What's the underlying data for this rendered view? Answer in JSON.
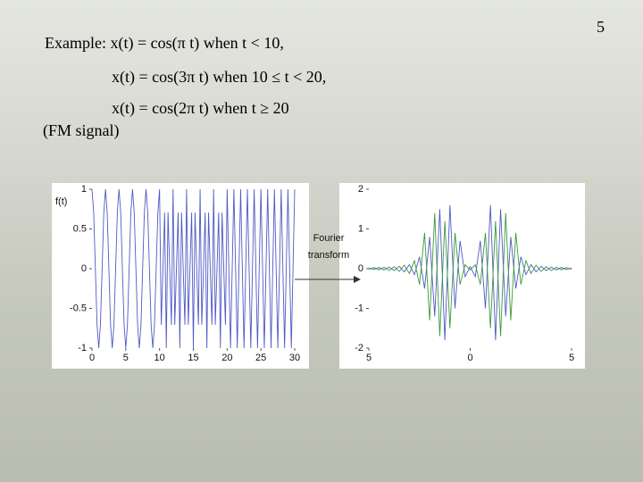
{
  "slide": {
    "page_number": "5",
    "lines": [
      "Example: x(t) = cos(π t) when t < 10,",
      "x(t) = cos(3π t) when 10 ≤ t < 20,",
      "x(t) = cos(2π t) when t ≥ 20",
      "(FM signal)"
    ]
  },
  "chart_data": [
    {
      "type": "line",
      "ylabel": "f(t)",
      "x": [
        0,
        0.25,
        0.5,
        0.75,
        1,
        1.25,
        1.5,
        1.75,
        2,
        2.25,
        2.5,
        2.75,
        3,
        3.25,
        3.5,
        3.75,
        4,
        4.25,
        4.5,
        4.75,
        5,
        5.25,
        5.5,
        5.75,
        6,
        6.25,
        6.5,
        6.75,
        7,
        7.25,
        7.5,
        7.75,
        8,
        8.25,
        8.5,
        8.75,
        9,
        9.25,
        9.5,
        9.75,
        10,
        10.25,
        10.5,
        10.75,
        11,
        11.25,
        11.5,
        11.75,
        12,
        12.25,
        12.5,
        12.75,
        13,
        13.25,
        13.5,
        13.75,
        14,
        14.25,
        14.5,
        14.75,
        15,
        15.25,
        15.5,
        15.75,
        16,
        16.25,
        16.5,
        16.75,
        17,
        17.25,
        17.5,
        17.75,
        18,
        18.25,
        18.5,
        18.75,
        19,
        19.25,
        19.5,
        19.75,
        20,
        20.25,
        20.5,
        20.75,
        21,
        21.25,
        21.5,
        21.75,
        22,
        22.25,
        22.5,
        22.75,
        23,
        23.25,
        23.5,
        23.75,
        24,
        24.25,
        24.5,
        24.75,
        25,
        25.25,
        25.5,
        25.75,
        26,
        26.25,
        26.5,
        26.75,
        27,
        27.25,
        27.5,
        27.75,
        28,
        28.25,
        28.5,
        28.75,
        29,
        29.25,
        29.5,
        29.75,
        30
      ],
      "series": [
        {
          "color": "#4f5bc4",
          "values": [
            1,
            0.707,
            0,
            -0.707,
            -1,
            -0.707,
            0,
            0.707,
            1,
            0.707,
            0,
            -0.707,
            -1,
            -0.707,
            0,
            0.707,
            1,
            0.707,
            0,
            -0.707,
            -1,
            -0.707,
            0,
            0.707,
            1,
            0.707,
            0,
            -0.707,
            -1,
            -0.707,
            0,
            0.707,
            1,
            0.707,
            0,
            -0.707,
            -1,
            -0.707,
            0,
            0.707,
            1,
            -0.707,
            0,
            0.707,
            -1,
            0.707,
            0,
            -0.707,
            1,
            -0.707,
            0,
            0.707,
            -1,
            0.707,
            0,
            -0.707,
            1,
            -0.707,
            0,
            0.707,
            -1,
            0.707,
            0,
            -0.707,
            1,
            -0.707,
            0,
            0.707,
            -1,
            0.707,
            0,
            -0.707,
            1,
            -0.707,
            0,
            0.707,
            -1,
            0.707,
            0,
            -0.707,
            1,
            0,
            -1,
            0,
            1,
            0,
            -1,
            0,
            1,
            0,
            -1,
            0,
            1,
            0,
            -1,
            0,
            1,
            0,
            -1,
            0,
            1,
            0,
            -1,
            0,
            1,
            0,
            -1,
            0,
            1,
            0,
            -1,
            0,
            1,
            0,
            -1,
            0,
            1,
            0,
            -1,
            0,
            1
          ]
        }
      ],
      "xlim": [
        0,
        30
      ],
      "xticks": [
        0,
        5,
        10,
        15,
        20,
        25,
        30
      ],
      "ylim": [
        -1,
        1
      ],
      "yticks": [
        -1,
        -0.5,
        0,
        0.5,
        1
      ]
    },
    {
      "type": "line",
      "annotation": [
        "Fourier",
        "transform"
      ],
      "x": [
        -5,
        -4.75,
        -4.5,
        -4.25,
        -4,
        -3.75,
        -3.5,
        -3.25,
        -3,
        -2.75,
        -2.5,
        -2.25,
        -2,
        -1.75,
        -1.5,
        -1.25,
        -1,
        -0.75,
        -0.5,
        -0.25,
        0,
        0.25,
        0.5,
        0.75,
        1,
        1.25,
        1.5,
        1.75,
        2,
        2.25,
        2.5,
        2.75,
        3,
        3.25,
        3.5,
        3.75,
        4,
        4.25,
        4.5,
        4.75,
        5
      ],
      "series": [
        {
          "color": "#4f5bc4",
          "values": [
            0.02,
            -0.02,
            0.03,
            -0.03,
            0.04,
            -0.05,
            0.06,
            -0.08,
            0.1,
            -0.15,
            0.3,
            -0.5,
            0.8,
            -1.2,
            1.5,
            -1.8,
            1.6,
            -1.0,
            0.7,
            -0.2,
            0.05,
            -0.2,
            0.7,
            -1.0,
            1.6,
            -1.8,
            1.5,
            -1.2,
            0.8,
            -0.5,
            0.3,
            -0.15,
            0.1,
            -0.08,
            0.06,
            -0.05,
            0.04,
            -0.03,
            0.03,
            -0.02,
            0.02
          ]
        },
        {
          "color": "#3c9a3c",
          "values": [
            -0.02,
            0.03,
            -0.03,
            0.04,
            -0.05,
            0.05,
            -0.07,
            0.09,
            -0.12,
            0.2,
            -0.4,
            0.9,
            -1.3,
            1.4,
            -1.7,
            1.2,
            -1.5,
            0.9,
            -0.4,
            0.1,
            -0.03,
            0.1,
            -0.4,
            0.9,
            -1.5,
            1.2,
            -1.7,
            1.4,
            -1.3,
            0.9,
            -0.4,
            0.2,
            -0.12,
            0.09,
            -0.07,
            0.05,
            -0.05,
            0.04,
            -0.03,
            0.03,
            -0.02
          ]
        }
      ],
      "xlim": [
        -5,
        5
      ],
      "xticks": [
        {
          "value": -5,
          "label": "5"
        },
        0,
        5
      ],
      "ylim": [
        -2,
        2
      ],
      "yticks": [
        -2,
        -1,
        0,
        1,
        2
      ]
    }
  ]
}
